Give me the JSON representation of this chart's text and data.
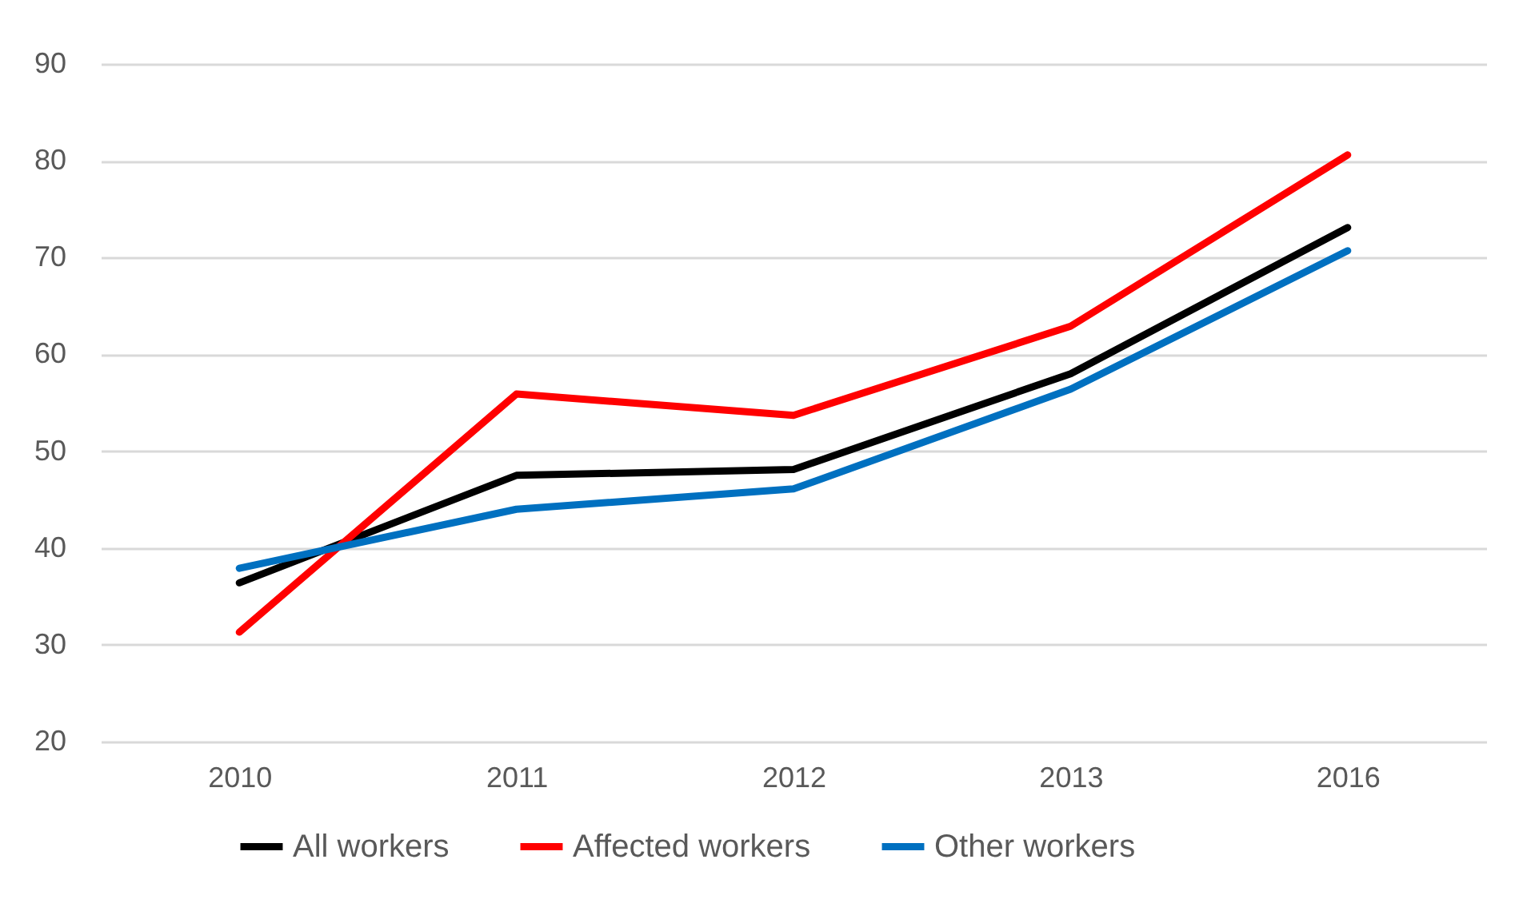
{
  "chart_data": {
    "type": "line",
    "categories": [
      "2010",
      "2011",
      "2012",
      "2013",
      "2016"
    ],
    "series": [
      {
        "name": "All workers",
        "color": "#000000",
        "values": [
          36.4,
          47.5,
          48.1,
          58.0,
          73.1
        ]
      },
      {
        "name": "Affected workers",
        "color": "#ff0000",
        "values": [
          31.3,
          55.9,
          53.7,
          62.9,
          80.6
        ]
      },
      {
        "name": "Other workers",
        "color": "#0070c0",
        "values": [
          37.9,
          44.0,
          46.1,
          56.4,
          70.7
        ]
      }
    ],
    "ylim": [
      20,
      90
    ],
    "yticks": [
      20,
      30,
      40,
      50,
      60,
      70,
      80,
      90
    ],
    "grid": "y",
    "legend": "bottom",
    "line_style": "solid"
  }
}
